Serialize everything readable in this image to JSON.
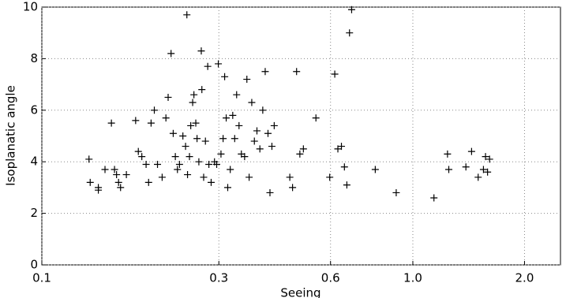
{
  "chart_data": {
    "type": "scatter",
    "xlabel": "Seeing",
    "ylabel": "Isoplanatic angle",
    "xscale": "log",
    "grid": true,
    "color": "#000000",
    "marker": "+",
    "xlim": [
      0.1,
      2.5
    ],
    "ylim": [
      0,
      10
    ],
    "xticks": [
      0.1,
      0.3,
      0.6,
      {
        "value": 1,
        "label": "1.0"
      },
      {
        "value": 2,
        "label": "2.0"
      }
    ],
    "yticks": [
      0,
      2,
      4,
      6,
      8,
      10
    ],
    "x": [
      0.134,
      0.135,
      0.142,
      0.142,
      0.148,
      0.154,
      0.157,
      0.159,
      0.161,
      0.163,
      0.169,
      0.179,
      0.182,
      0.186,
      0.191,
      0.194,
      0.197,
      0.201,
      0.205,
      0.211,
      0.216,
      0.219,
      0.223,
      0.226,
      0.229,
      0.232,
      0.235,
      0.24,
      0.244,
      0.246,
      0.247,
      0.25,
      0.252,
      0.255,
      0.257,
      0.26,
      0.262,
      0.265,
      0.269,
      0.27,
      0.273,
      0.276,
      0.28,
      0.282,
      0.286,
      0.292,
      0.296,
      0.299,
      0.304,
      0.308,
      0.311,
      0.314,
      0.317,
      0.322,
      0.327,
      0.331,
      0.335,
      0.34,
      0.345,
      0.352,
      0.357,
      0.362,
      0.368,
      0.374,
      0.38,
      0.387,
      0.394,
      0.4,
      0.407,
      0.412,
      0.417,
      0.423,
      0.466,
      0.474,
      0.486,
      0.496,
      0.507,
      0.548,
      0.597,
      0.616,
      0.628,
      0.642,
      0.654,
      0.664,
      0.675,
      0.684,
      0.792,
      0.902,
      1.14,
      1.24,
      1.25,
      1.39,
      1.44,
      1.5,
      1.55,
      1.57,
      1.59,
      1.61
    ],
    "y": [
      4.1,
      3.2,
      3.0,
      2.9,
      3.7,
      5.5,
      3.7,
      3.5,
      3.2,
      3.0,
      3.5,
      5.6,
      4.4,
      4.2,
      3.9,
      3.2,
      5.5,
      6.0,
      3.9,
      3.4,
      5.7,
      6.5,
      8.2,
      5.1,
      4.2,
      3.7,
      3.9,
      5.0,
      4.6,
      9.7,
      3.5,
      4.2,
      5.4,
      6.3,
      6.6,
      5.5,
      4.9,
      4.0,
      8.3,
      6.8,
      3.4,
      4.8,
      7.7,
      3.9,
      3.2,
      4.0,
      3.9,
      7.8,
      4.3,
      4.9,
      7.3,
      5.7,
      3.0,
      3.7,
      5.8,
      4.9,
      6.6,
      5.4,
      4.3,
      4.2,
      7.2,
      3.4,
      6.3,
      4.8,
      5.2,
      4.5,
      6.0,
      7.5,
      5.1,
      2.8,
      4.6,
      5.4,
      3.4,
      3.0,
      7.5,
      4.3,
      4.5,
      5.7,
      3.4,
      7.4,
      4.5,
      4.6,
      3.8,
      3.1,
      9.0,
      9.9,
      3.7,
      2.8,
      2.6,
      4.3,
      3.7,
      3.8,
      4.4,
      3.4,
      3.7,
      4.2,
      3.6,
      4.1
    ]
  }
}
